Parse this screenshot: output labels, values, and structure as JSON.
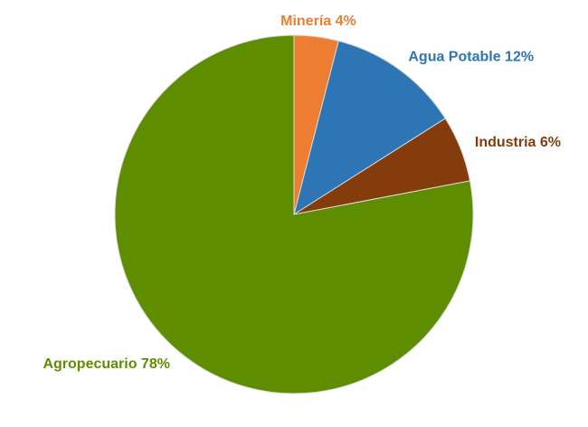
{
  "chart_data": {
    "type": "pie",
    "values": [
      4,
      12,
      6,
      78
    ],
    "value_labels": [
      "Minería 4%",
      "Agua Potable 12%",
      "Industria 6%",
      "Agropecuario 78%"
    ],
    "colors": [
      "#ed7d31",
      "#2e75b6",
      "#843c0c",
      "#5e8e00"
    ]
  }
}
